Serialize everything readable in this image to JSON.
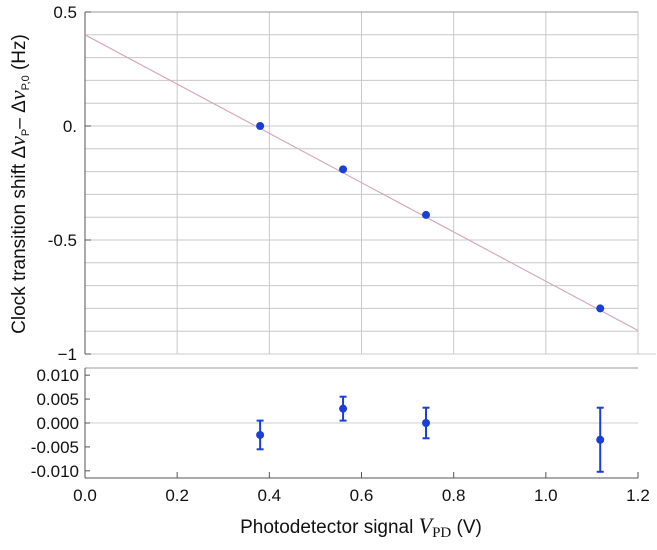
{
  "chart_data": [
    {
      "type": "scatter",
      "title": "",
      "xlabel": "",
      "ylabel_parts": [
        "Clock transition shift ",
        "Δ",
        "ν",
        "P",
        "– ",
        "Δ",
        "ν",
        "P,0",
        " (Hz)"
      ],
      "xlim": [
        0,
        1.2
      ],
      "ylim": [
        -1,
        0.5
      ],
      "x_gridlines": [
        0.2,
        0.4,
        0.6,
        0.8,
        1.0,
        1.2
      ],
      "y_gridlines": [
        0.4,
        0.3,
        0.2,
        0.1,
        0.0,
        -0.1,
        -0.2,
        -0.3,
        -0.4,
        -0.5,
        -0.6,
        -0.7,
        -0.8,
        -0.9
      ],
      "y_ticks": [
        {
          "value": 0.5,
          "label": "0.5"
        },
        {
          "value": 0.0,
          "label": "0."
        },
        {
          "value": -0.5,
          "label": "-0.5"
        },
        {
          "value": -1.0,
          "label": "−1"
        }
      ],
      "series": [
        {
          "x": [
            0.38,
            0.56,
            0.74,
            1.118
          ],
          "y": [
            0.0,
            -0.19,
            -0.39,
            -0.8
          ],
          "color": "#1a3fd8"
        }
      ],
      "fit_line": {
        "x": [
          0.0,
          1.2
        ],
        "y": [
          0.4,
          -0.897
        ],
        "color": "#d7a9b8"
      }
    },
    {
      "type": "scatter",
      "title": "",
      "xlabel_parts": [
        "Photodetector signal ",
        "V",
        "PD",
        " (V)"
      ],
      "ylabel": "",
      "xlim": [
        0,
        1.2
      ],
      "ylim": [
        -0.0115,
        0.0115
      ],
      "x_ticks": [
        {
          "value": 0.0,
          "label": "0.0"
        },
        {
          "value": 0.2,
          "label": "0.2"
        },
        {
          "value": 0.4,
          "label": "0.4"
        },
        {
          "value": 0.6,
          "label": "0.6"
        },
        {
          "value": 0.8,
          "label": "0.8"
        },
        {
          "value": 1.0,
          "label": "1.0"
        },
        {
          "value": 1.2,
          "label": "1.2"
        }
      ],
      "y_ticks": [
        {
          "value": 0.01,
          "label": "0.010"
        },
        {
          "value": 0.005,
          "label": "0.005"
        },
        {
          "value": 0.0,
          "label": "0.000"
        },
        {
          "value": -0.005,
          "label": "-0.005"
        },
        {
          "value": -0.01,
          "label": "-0.010"
        }
      ],
      "zero_line": 0.0,
      "series": [
        {
          "x": [
            0.38,
            0.56,
            0.74,
            1.118
          ],
          "y": [
            -0.0025,
            0.003,
            0.0,
            -0.0035
          ],
          "err": [
            0.003,
            0.0025,
            0.0032,
            0.0067
          ],
          "color": "#1a3fd8"
        }
      ]
    }
  ]
}
